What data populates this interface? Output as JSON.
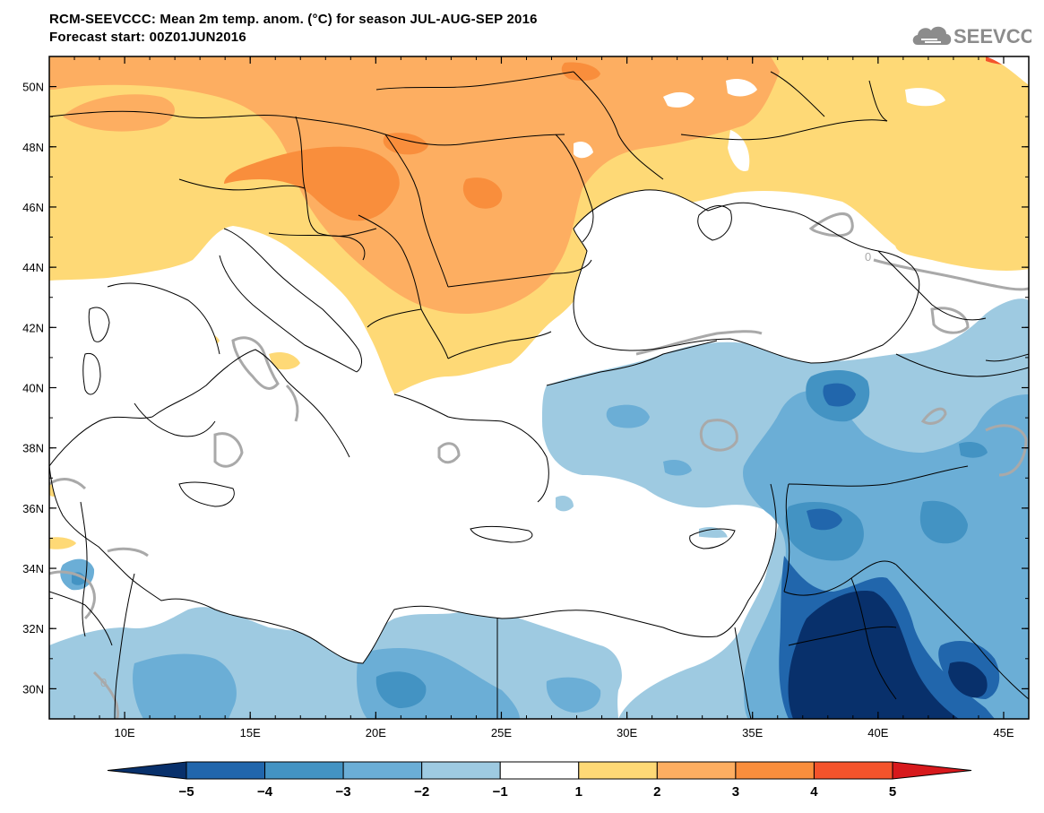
{
  "title": {
    "line1": "RCM-SEEVCCC: Mean 2m temp. anom. (°C) for season JUL-AUG-SEP 2016",
    "line2": "Forecast start: 00Z01JUN2016"
  },
  "logo": {
    "text": "SEEVCCC",
    "icon": "cloud-icon",
    "color": "#8c8c8c"
  },
  "map": {
    "lon_range": [
      7,
      46
    ],
    "lat_range": [
      29,
      51
    ],
    "lat_ticks": [
      {
        "lat": 50,
        "label": "50N"
      },
      {
        "lat": 48,
        "label": "48N"
      },
      {
        "lat": 46,
        "label": "46N"
      },
      {
        "lat": 44,
        "label": "44N"
      },
      {
        "lat": 42,
        "label": "42N"
      },
      {
        "lat": 40,
        "label": "40N"
      },
      {
        "lat": 38,
        "label": "38N"
      },
      {
        "lat": 36,
        "label": "36N"
      },
      {
        "lat": 34,
        "label": "34N"
      },
      {
        "lat": 32,
        "label": "32N"
      },
      {
        "lat": 30,
        "label": "30N"
      }
    ],
    "lon_ticks": [
      {
        "lon": 10,
        "label": "10E"
      },
      {
        "lon": 15,
        "label": "15E"
      },
      {
        "lon": 20,
        "label": "20E"
      },
      {
        "lon": 25,
        "label": "25E"
      },
      {
        "lon": 30,
        "label": "30E"
      },
      {
        "lon": 35,
        "label": "35E"
      },
      {
        "lon": 40,
        "label": "40E"
      },
      {
        "lon": 45,
        "label": "45E"
      }
    ],
    "contour_label": "0"
  },
  "colorbar": {
    "levels": [
      -5,
      -4,
      -3,
      -2,
      -1,
      1,
      2,
      3,
      4,
      5
    ],
    "labels": [
      "−5",
      "−4",
      "−3",
      "−2",
      "−1",
      "1",
      "2",
      "3",
      "4",
      "5"
    ],
    "colors": [
      "#08306b",
      "#2166ac",
      "#4393c3",
      "#6baed6",
      "#9ecae1",
      "#ffffff",
      "#fed976",
      "#fdae61",
      "#f98e3c",
      "#f4532b",
      "#d7191c"
    ]
  }
}
